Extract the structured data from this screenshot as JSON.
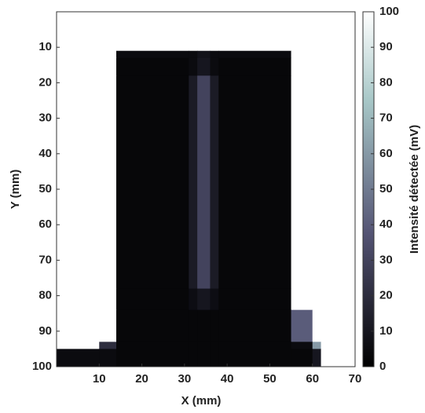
{
  "chart_data": {
    "type": "heatmap",
    "xlabel": "X (mm)",
    "ylabel": "Y (mm)",
    "xlim": [
      0,
      70
    ],
    "ylim": [
      0,
      100
    ],
    "y_reversed": true,
    "xticks": [
      10,
      20,
      30,
      40,
      50,
      60,
      70
    ],
    "yticks": [
      10,
      20,
      30,
      40,
      50,
      60,
      70,
      80,
      90,
      100
    ],
    "xbins": [
      0,
      10,
      14,
      31,
      33,
      36,
      38,
      55,
      60,
      62,
      70
    ],
    "ybins": [
      0,
      11,
      13,
      18,
      78,
      84,
      93,
      95,
      100
    ],
    "values": [
      [
        100,
        100,
        100,
        100,
        100,
        100,
        100,
        100,
        100,
        100
      ],
      [
        100,
        100,
        5,
        5,
        8,
        5,
        5,
        100,
        100,
        100
      ],
      [
        100,
        100,
        3,
        5,
        10,
        5,
        3,
        100,
        100,
        100
      ],
      [
        100,
        100,
        3,
        12,
        30,
        12,
        3,
        100,
        100,
        100
      ],
      [
        100,
        100,
        3,
        6,
        10,
        6,
        3,
        100,
        100,
        100
      ],
      [
        100,
        100,
        3,
        3,
        3,
        3,
        3,
        40,
        100,
        100
      ],
      [
        100,
        20,
        3,
        3,
        3,
        3,
        3,
        5,
        60,
        100
      ],
      [
        5,
        5,
        3,
        3,
        3,
        3,
        3,
        3,
        10,
        100
      ]
    ],
    "colormap": "bone",
    "colorbar": {
      "label": "Intensité détectée (mV)",
      "lim": [
        0,
        100
      ],
      "ticks": [
        0,
        10,
        20,
        30,
        40,
        50,
        60,
        70,
        80,
        90,
        100
      ]
    }
  }
}
